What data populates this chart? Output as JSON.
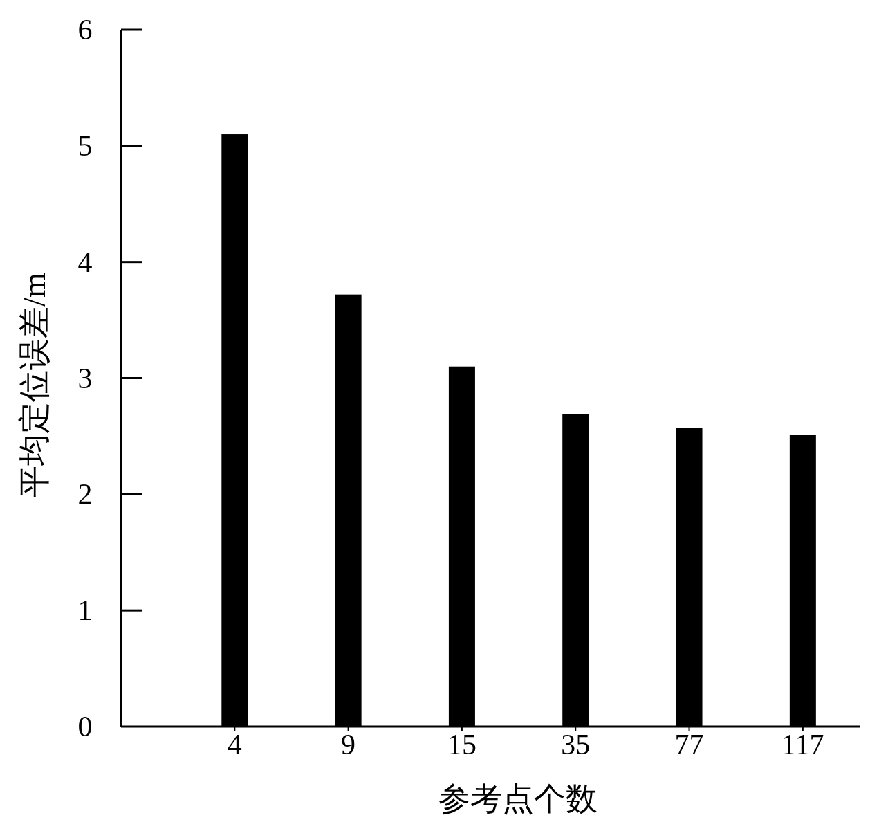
{
  "chart_data": {
    "type": "bar",
    "xlabel": "参考点个数",
    "ylabel": "平均定位误差/m",
    "categories": [
      null,
      "4",
      "9",
      "15",
      "35",
      "77",
      "117"
    ],
    "values": [
      null,
      5.1,
      3.72,
      3.1,
      2.69,
      2.57,
      2.51
    ],
    "color": "#000000",
    "ylim": [
      0,
      6
    ],
    "yticks": [
      0,
      1,
      2,
      3,
      4,
      5,
      6
    ],
    "grid": false
  }
}
